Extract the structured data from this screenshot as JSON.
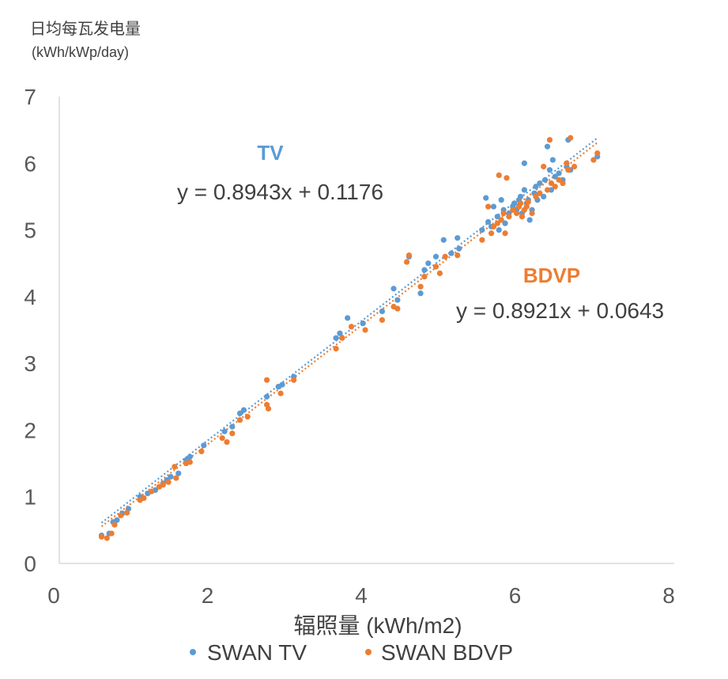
{
  "y_axis_title_line1": "日均每瓦发电量",
  "y_axis_title_line2": "(kWh/kWp/day)",
  "chart_data": {
    "type": "scatter",
    "xlabel": "辐照量 (kWh/m2)",
    "ylabel": "日均每瓦发电量 (kWh/kWp/day)",
    "xlim": [
      0,
      8
    ],
    "ylim": [
      0,
      7
    ],
    "xticks": [
      "0",
      "2",
      "4",
      "6",
      "8"
    ],
    "yticks": [
      "0",
      "1",
      "2",
      "3",
      "4",
      "5",
      "6",
      "7"
    ],
    "grid": false,
    "legend_position": "bottom",
    "series": [
      {
        "name": "SWAN TV",
        "color": "#5B9BD5",
        "trendline": {
          "slope": 0.8943,
          "intercept": 0.1176,
          "x_range": [
            0.55,
            7.0
          ]
        },
        "equation_label": "y = 0.8943x  + 0.1176",
        "tag": "TV",
        "points": [
          [
            0.55,
            0.42
          ],
          [
            0.65,
            0.45
          ],
          [
            0.7,
            0.62
          ],
          [
            0.75,
            0.65
          ],
          [
            0.82,
            0.75
          ],
          [
            0.9,
            0.82
          ],
          [
            1.05,
            1.0
          ],
          [
            1.15,
            1.05
          ],
          [
            1.25,
            1.1
          ],
          [
            1.35,
            1.2
          ],
          [
            1.4,
            1.25
          ],
          [
            1.45,
            1.3
          ],
          [
            1.55,
            1.35
          ],
          [
            1.65,
            1.55
          ],
          [
            1.7,
            1.6
          ],
          [
            1.88,
            1.77
          ],
          [
            2.15,
            1.98
          ],
          [
            2.25,
            2.05
          ],
          [
            2.35,
            2.25
          ],
          [
            2.4,
            2.3
          ],
          [
            2.7,
            2.5
          ],
          [
            2.85,
            2.65
          ],
          [
            2.9,
            2.68
          ],
          [
            3.05,
            2.8
          ],
          [
            3.6,
            3.38
          ],
          [
            3.65,
            3.45
          ],
          [
            3.75,
            3.68
          ],
          [
            3.95,
            3.6
          ],
          [
            4.2,
            3.78
          ],
          [
            4.35,
            4.12
          ],
          [
            4.4,
            3.95
          ],
          [
            4.55,
            4.6
          ],
          [
            4.7,
            4.05
          ],
          [
            4.75,
            4.4
          ],
          [
            4.8,
            4.5
          ],
          [
            4.9,
            4.6
          ],
          [
            5.0,
            4.85
          ],
          [
            5.1,
            4.65
          ],
          [
            5.18,
            4.88
          ],
          [
            5.2,
            4.72
          ],
          [
            5.5,
            5.0
          ],
          [
            5.55,
            5.48
          ],
          [
            5.58,
            5.12
          ],
          [
            5.62,
            5.05
          ],
          [
            5.65,
            5.35
          ],
          [
            5.7,
            5.2
          ],
          [
            5.72,
            5.0
          ],
          [
            5.75,
            5.45
          ],
          [
            5.78,
            5.3
          ],
          [
            5.8,
            5.1
          ],
          [
            5.85,
            5.25
          ],
          [
            5.9,
            5.35
          ],
          [
            5.92,
            5.4
          ],
          [
            5.95,
            5.3
          ],
          [
            5.98,
            5.45
          ],
          [
            6.0,
            5.5
          ],
          [
            6.02,
            5.25
          ],
          [
            6.05,
            5.6
          ],
          [
            6.05,
            6.0
          ],
          [
            6.08,
            5.4
          ],
          [
            6.1,
            5.45
          ],
          [
            6.12,
            5.15
          ],
          [
            6.15,
            5.3
          ],
          [
            6.18,
            5.55
          ],
          [
            6.2,
            5.65
          ],
          [
            6.22,
            5.45
          ],
          [
            6.25,
            5.7
          ],
          [
            6.3,
            5.5
          ],
          [
            6.32,
            5.75
          ],
          [
            6.35,
            6.25
          ],
          [
            6.38,
            5.9
          ],
          [
            6.4,
            5.6
          ],
          [
            6.42,
            6.05
          ],
          [
            6.45,
            5.8
          ],
          [
            6.5,
            5.85
          ],
          [
            6.55,
            5.75
          ],
          [
            6.6,
            5.95
          ],
          [
            6.62,
            6.35
          ],
          [
            6.65,
            5.9
          ],
          [
            7.0,
            6.1
          ]
        ]
      },
      {
        "name": "SWAN BDVP",
        "color": "#ED7D31",
        "trendline": {
          "slope": 0.8921,
          "intercept": 0.0643,
          "x_range": [
            0.55,
            7.0
          ]
        },
        "equation_label": "y = 0.8921x  + 0.0643",
        "tag": "BDVP",
        "points": [
          [
            0.55,
            0.4
          ],
          [
            0.62,
            0.38
          ],
          [
            0.68,
            0.45
          ],
          [
            0.72,
            0.58
          ],
          [
            0.8,
            0.72
          ],
          [
            0.88,
            0.76
          ],
          [
            1.05,
            0.95
          ],
          [
            1.1,
            0.98
          ],
          [
            1.2,
            1.08
          ],
          [
            1.3,
            1.15
          ],
          [
            1.35,
            1.18
          ],
          [
            1.42,
            1.22
          ],
          [
            1.5,
            1.45
          ],
          [
            1.52,
            1.28
          ],
          [
            1.65,
            1.5
          ],
          [
            1.7,
            1.52
          ],
          [
            1.85,
            1.68
          ],
          [
            2.12,
            1.88
          ],
          [
            2.18,
            1.82
          ],
          [
            2.25,
            1.95
          ],
          [
            2.35,
            2.15
          ],
          [
            2.45,
            2.2
          ],
          [
            2.7,
            2.75
          ],
          [
            2.7,
            2.38
          ],
          [
            2.72,
            2.32
          ],
          [
            2.88,
            2.55
          ],
          [
            3.05,
            2.75
          ],
          [
            3.6,
            3.22
          ],
          [
            3.68,
            3.38
          ],
          [
            3.8,
            3.55
          ],
          [
            3.98,
            3.5
          ],
          [
            4.2,
            3.65
          ],
          [
            4.35,
            3.85
          ],
          [
            4.4,
            3.82
          ],
          [
            4.52,
            4.52
          ],
          [
            4.55,
            4.62
          ],
          [
            4.7,
            4.15
          ],
          [
            4.75,
            4.3
          ],
          [
            4.9,
            4.45
          ],
          [
            4.95,
            4.35
          ],
          [
            5.02,
            4.6
          ],
          [
            5.18,
            4.62
          ],
          [
            5.5,
            4.85
          ],
          [
            5.58,
            5.35
          ],
          [
            5.62,
            4.95
          ],
          [
            5.65,
            5.05
          ],
          [
            5.7,
            5.1
          ],
          [
            5.72,
            5.82
          ],
          [
            5.75,
            5.15
          ],
          [
            5.78,
            5.25
          ],
          [
            5.8,
            4.95
          ],
          [
            5.82,
            5.78
          ],
          [
            5.85,
            5.2
          ],
          [
            5.9,
            5.3
          ],
          [
            5.95,
            5.25
          ],
          [
            5.98,
            5.35
          ],
          [
            6.0,
            5.4
          ],
          [
            6.02,
            5.2
          ],
          [
            6.05,
            5.3
          ],
          [
            6.08,
            5.35
          ],
          [
            6.1,
            5.42
          ],
          [
            6.15,
            5.25
          ],
          [
            6.2,
            5.5
          ],
          [
            6.25,
            5.55
          ],
          [
            6.3,
            5.95
          ],
          [
            6.35,
            5.6
          ],
          [
            6.38,
            6.35
          ],
          [
            6.4,
            5.7
          ],
          [
            6.45,
            5.65
          ],
          [
            6.5,
            5.75
          ],
          [
            6.55,
            5.7
          ],
          [
            6.6,
            6.0
          ],
          [
            6.62,
            5.9
          ],
          [
            6.65,
            6.38
          ],
          [
            6.7,
            5.95
          ],
          [
            6.95,
            6.05
          ],
          [
            7.0,
            6.15
          ]
        ]
      }
    ]
  }
}
